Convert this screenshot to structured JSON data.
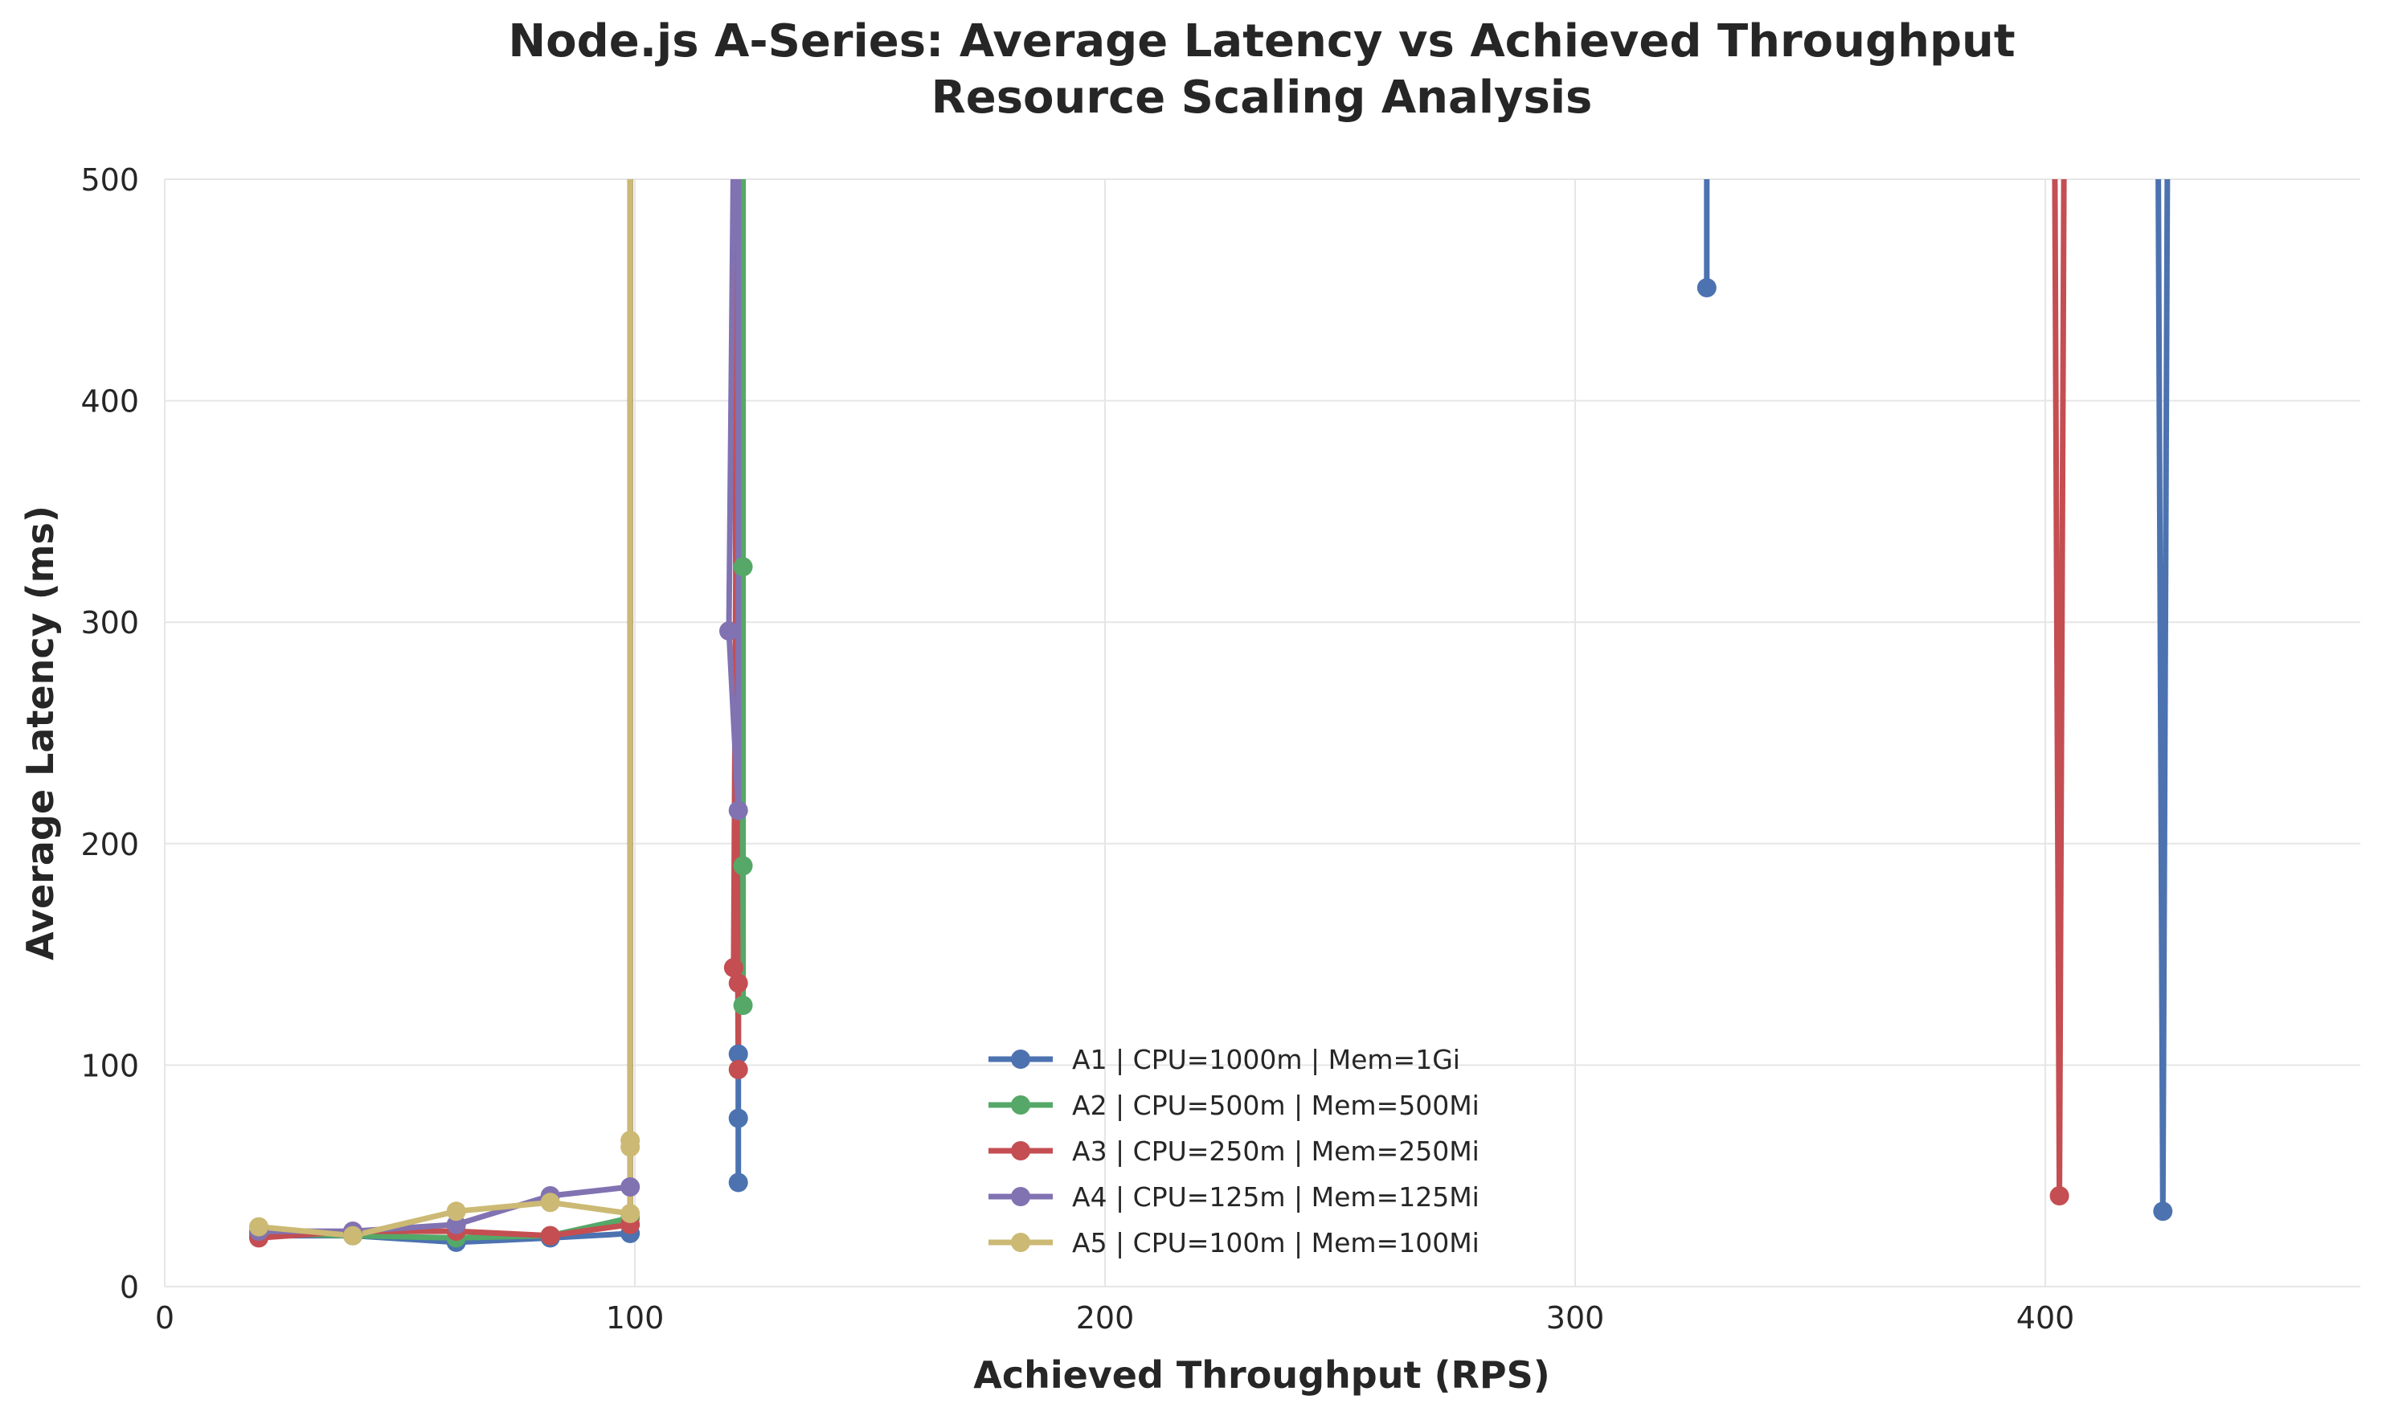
{
  "chart_data": {
    "type": "line",
    "title": "Node.js A-Series: Average Latency vs Achieved Throughput",
    "subtitle": "Resource Scaling Analysis",
    "xlabel": "Achieved Throughput (RPS)",
    "ylabel": "Average Latency (ms)",
    "xlim": [
      0,
      467
    ],
    "ylim": [
      0,
      500
    ],
    "xticks": [
      "0",
      "100",
      "200",
      "300",
      "400"
    ],
    "yticks": [
      "0",
      "100",
      "200",
      "300",
      "400",
      "500"
    ],
    "grid": true,
    "legend_position": "lower-center",
    "series": [
      {
        "name": "A1 | CPU=1000m | Mem=1Gi",
        "color": "#4c72b0",
        "points": [
          [
            20,
            23
          ],
          [
            40,
            23
          ],
          [
            62,
            20
          ],
          [
            82,
            22
          ],
          [
            99,
            24
          ],
          [
            99,
            520
          ],
          [
            122,
            520
          ],
          [
            122,
            47
          ],
          [
            122,
            76
          ],
          [
            122,
            105
          ],
          [
            122,
            520
          ],
          [
            328,
            520
          ],
          [
            328,
            451
          ],
          [
            328,
            520
          ],
          [
            424,
            520
          ],
          [
            425,
            34
          ],
          [
            426,
            520
          ]
        ]
      },
      {
        "name": "A2 | CPU=500m | Mem=500Mi",
        "color": "#55a868",
        "points": [
          [
            20,
            24
          ],
          [
            40,
            23
          ],
          [
            62,
            22
          ],
          [
            82,
            23
          ],
          [
            99,
            31
          ],
          [
            99,
            520
          ],
          [
            122,
            520
          ],
          [
            123,
            127
          ],
          [
            123,
            190
          ],
          [
            123,
            325
          ],
          [
            123,
            520
          ]
        ]
      },
      {
        "name": "A3 | CPU=250m | Mem=250Mi",
        "color": "#c44e52",
        "points": [
          [
            20,
            22
          ],
          [
            40,
            25
          ],
          [
            62,
            25
          ],
          [
            82,
            23
          ],
          [
            99,
            28
          ],
          [
            99,
            520
          ],
          [
            121,
            520
          ],
          [
            122,
            98
          ],
          [
            122,
            137
          ],
          [
            121,
            144
          ],
          [
            122,
            520
          ],
          [
            402,
            520
          ],
          [
            403,
            41
          ],
          [
            404,
            520
          ]
        ]
      },
      {
        "name": "A4 | CPU=125m | Mem=125Mi",
        "color": "#8172b2",
        "points": [
          [
            20,
            25
          ],
          [
            40,
            25
          ],
          [
            62,
            28
          ],
          [
            82,
            41
          ],
          [
            99,
            45
          ],
          [
            99,
            520
          ],
          [
            121,
            520
          ],
          [
            120,
            296
          ],
          [
            122,
            215
          ],
          [
            122,
            520
          ]
        ]
      },
      {
        "name": "A5 | CPU=100m | Mem=100Mi",
        "color": "#ccb974",
        "points": [
          [
            20,
            27
          ],
          [
            40,
            23
          ],
          [
            62,
            34
          ],
          [
            82,
            38
          ],
          [
            99,
            33
          ],
          [
            99,
            520
          ],
          [
            99,
            66
          ],
          [
            99,
            63
          ],
          [
            99,
            520
          ]
        ]
      }
    ]
  }
}
